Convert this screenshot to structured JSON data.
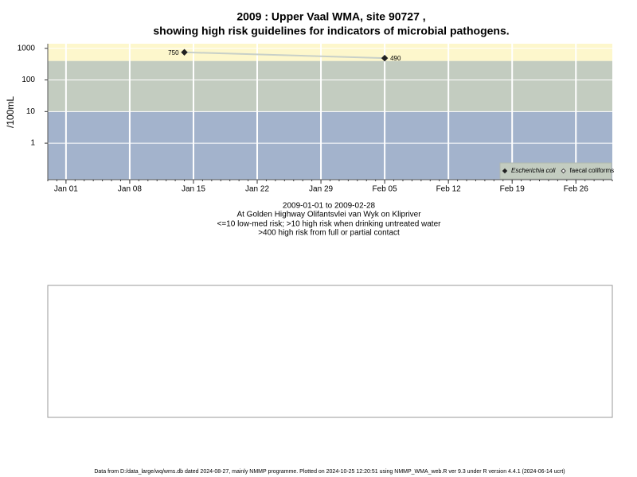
{
  "chart_data": {
    "type": "line",
    "title": "2009 : Upper Vaal WMA, site 90727 ,",
    "subtitle": "showing high risk guidelines for indicators of microbial pathogens.",
    "y_label": "/100mL",
    "notes": [
      "2009-01-01 to 2009-02-28",
      "At Golden Highway Olifantsvlei van Wyk on Klipriver",
      "<=10 low-med risk; >10 high risk when drinking untreated water",
      ">400 high risk from full or partial contact"
    ],
    "footer": "Data from D:/data_large/wq/wms.db dated 2024-08-27, mainly NMMP programme. Plotted on 2024-10-25 12:20:51 using NMMP_WMA_web.R ver 9.3 under R version 4.4.1 (2024-06-14 ucrt)",
    "log_y": true,
    "ylim": [
      0.07,
      1400
    ],
    "yticks": [
      1,
      10,
      100,
      1000
    ],
    "xlim": [
      "2008-12-30",
      "2009-03-02"
    ],
    "xticks": [
      {
        "value": "2009-01-01",
        "label": "Jan 01"
      },
      {
        "value": "2009-01-08",
        "label": "Jan 08"
      },
      {
        "value": "2009-01-15",
        "label": "Jan 15"
      },
      {
        "value": "2009-01-22",
        "label": "Jan 22"
      },
      {
        "value": "2009-01-29",
        "label": "Jan 29"
      },
      {
        "value": "2009-02-05",
        "label": "Feb 05"
      },
      {
        "value": "2009-02-12",
        "label": "Feb 12"
      },
      {
        "value": "2009-02-19",
        "label": "Feb 19"
      },
      {
        "value": "2009-02-26",
        "label": "Feb 26"
      }
    ],
    "thresholds": [
      10,
      400
    ],
    "band_colors": [
      "#a3b3cc",
      "#c3ccc0",
      "#fdf7cc"
    ],
    "grid": true,
    "legend": "bottom-right",
    "series": [
      {
        "name": "Escherichia coli",
        "color": "#222222",
        "line_color": "#c8d0c8",
        "filled": true,
        "x": [
          "2009-01-14",
          "2009-02-05"
        ],
        "values": [
          750,
          490
        ]
      },
      {
        "name": "faecal coliforms",
        "color": "#444444",
        "line_color": "#c8d0c8",
        "filled": false,
        "x": [],
        "values": []
      }
    ]
  }
}
